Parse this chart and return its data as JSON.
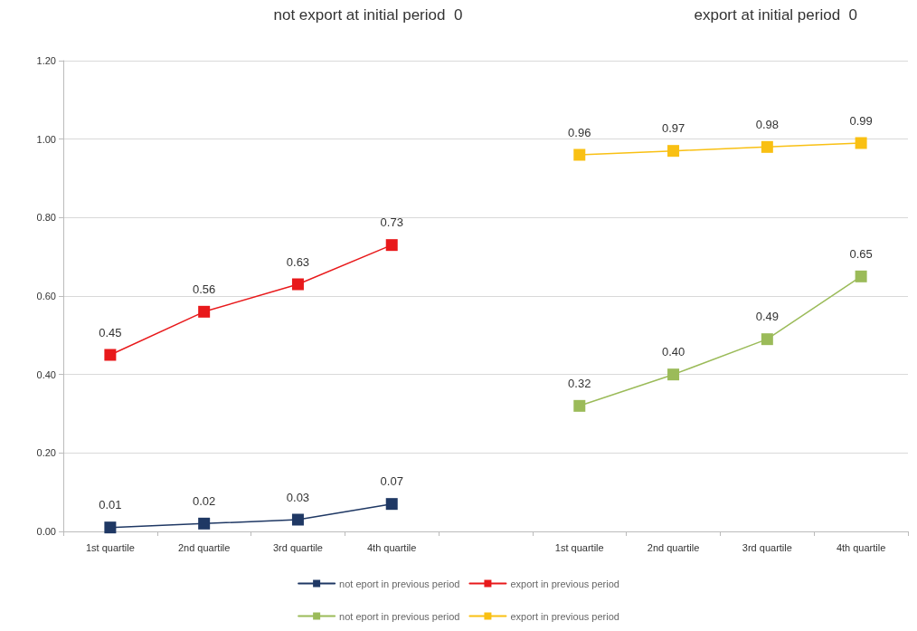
{
  "chart_data": {
    "type": "line",
    "annotations": [
      "not export at initial period  0",
      "export at initial period  0"
    ],
    "categories": [
      "1st quartile",
      "2nd quartile",
      "3rd quartile",
      "4th quartile",
      null,
      "1st quartile",
      "2nd quartile",
      "3rd quartile",
      "4th quartile"
    ],
    "series": [
      {
        "name": "not eport in previous period",
        "color": "#1f3864",
        "values": [
          0.01,
          0.02,
          0.03,
          0.07,
          null,
          null,
          null,
          null,
          null
        ],
        "value_labels": [
          "0.01",
          "0.02",
          "0.03",
          "0.07",
          null,
          null,
          null,
          null,
          null
        ]
      },
      {
        "name": "export in previous period",
        "color": "#e8191b",
        "values": [
          0.45,
          0.56,
          0.63,
          0.73,
          null,
          null,
          null,
          null,
          null
        ],
        "value_labels": [
          "0.45",
          "0.56",
          "0.63",
          "0.73",
          null,
          null,
          null,
          null,
          null
        ]
      },
      {
        "name": "not eport in previous period",
        "color": "#9bbb59",
        "values": [
          null,
          null,
          null,
          null,
          null,
          0.32,
          0.4,
          0.49,
          0.65
        ],
        "value_labels": [
          null,
          null,
          null,
          null,
          null,
          "0.32",
          "0.40",
          "0.49",
          "0.65"
        ]
      },
      {
        "name": "export in previous period",
        "color": "#f9c013",
        "values": [
          null,
          null,
          null,
          null,
          null,
          0.96,
          0.97,
          0.98,
          0.99
        ],
        "value_labels": [
          null,
          null,
          null,
          null,
          null,
          "0.96",
          "0.97",
          "0.98",
          "0.99"
        ]
      }
    ],
    "ylim": [
      0,
      1.2
    ],
    "yticks": [
      {
        "value": 0,
        "label": "0.00"
      },
      {
        "value": 0.2,
        "label": "0.20"
      },
      {
        "value": 0.4,
        "label": "0.40"
      },
      {
        "value": 0.6,
        "label": "0.60"
      },
      {
        "value": 0.8,
        "label": "0.80"
      },
      {
        "value": 1,
        "label": "1.00"
      },
      {
        "value": 1.2,
        "label": "1.20"
      }
    ],
    "grid": "y",
    "legend": "bottom",
    "marker": "square",
    "line_style": "solid"
  }
}
